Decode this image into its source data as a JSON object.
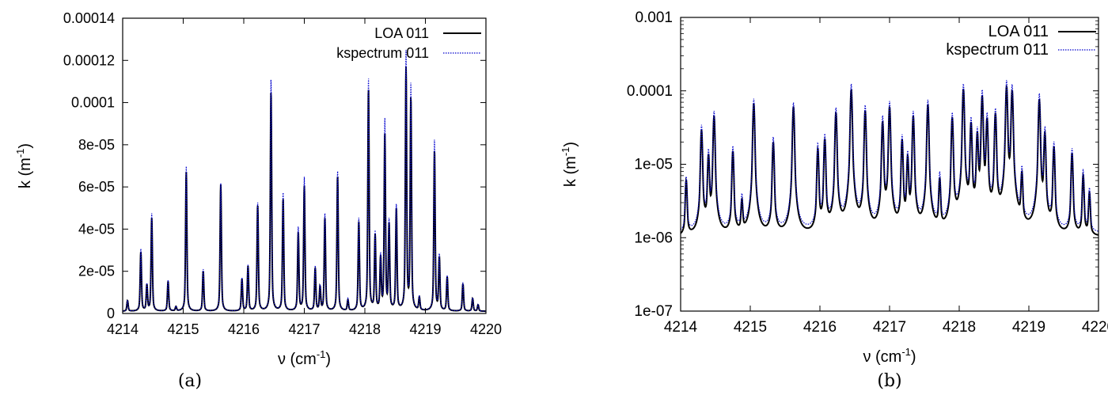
{
  "chart_data": [
    {
      "type": "line",
      "caption": "(a)",
      "xlabel": "ν (cm",
      "xlabel_sup": "-1",
      "xlabel_tail": ")",
      "ylabel": "k (m",
      "ylabel_sup": "-1",
      "ylabel_tail": ")",
      "xlim": [
        4214,
        4220
      ],
      "ylim": [
        0,
        0.00014
      ],
      "yscale": "linear",
      "xticks": [
        "4214",
        "4215",
        "4216",
        "4217",
        "4218",
        "4219",
        "4220"
      ],
      "yticks": [
        "0",
        "2e-05",
        "4e-05",
        "6e-05",
        "8e-05",
        "0.0001",
        "0.00012",
        "0.00014"
      ],
      "ytick_values": [
        0,
        2e-05,
        4e-05,
        6e-05,
        8e-05,
        0.0001,
        0.00012,
        0.00014
      ],
      "legend": "top-right",
      "grid": false,
      "series": [
        {
          "name": "LOA 011",
          "color": "#000000",
          "style": "solid"
        },
        {
          "name": "kspectrum 011",
          "color": "#0000cc",
          "style": "dotted"
        }
      ]
    },
    {
      "type": "line",
      "caption": "(b)",
      "xlabel": "ν (cm",
      "xlabel_sup": "-1",
      "xlabel_tail": ")",
      "ylabel": "k (m",
      "ylabel_sup": "-1",
      "ylabel_tail": ")",
      "xlim": [
        4214,
        4220
      ],
      "ylim": [
        1e-07,
        0.001
      ],
      "yscale": "log",
      "xticks": [
        "4214",
        "4215",
        "4216",
        "4217",
        "4218",
        "4219",
        "4220"
      ],
      "yticks": [
        "1e-07",
        "1e-06",
        "1e-05",
        "0.0001",
        "0.001"
      ],
      "ytick_values": [
        1e-07,
        1e-06,
        1e-05,
        0.0001,
        0.001
      ],
      "legend": "top-right",
      "grid": false,
      "series": [
        {
          "name": "LOA 011",
          "color": "#000000",
          "style": "solid"
        },
        {
          "name": "kspectrum 011",
          "color": "#0000cc",
          "style": "dotted"
        }
      ]
    }
  ],
  "lines": [
    {
      "x": 4214.08,
      "peak": 5e-06,
      "kratio": 1.0
    },
    {
      "x": 4214.3,
      "peak": 2.8e-05,
      "kratio": 1.05
    },
    {
      "x": 4214.4,
      "peak": 1.2e-05,
      "kratio": 1.05
    },
    {
      "x": 4214.48,
      "peak": 4.4e-05,
      "kratio": 1.05
    },
    {
      "x": 4214.75,
      "peak": 1.4e-05,
      "kratio": 1.05
    },
    {
      "x": 4214.88,
      "peak": 2e-06,
      "kratio": 1.1
    },
    {
      "x": 4215.05,
      "peak": 6.6e-05,
      "kratio": 1.04
    },
    {
      "x": 4215.33,
      "peak": 1.9e-05,
      "kratio": 1.05
    },
    {
      "x": 4215.62,
      "peak": 6e-05,
      "kratio": 1.01
    },
    {
      "x": 4215.97,
      "peak": 1.5e-05,
      "kratio": 1.05
    },
    {
      "x": 4216.07,
      "peak": 2.1e-05,
      "kratio": 1.04
    },
    {
      "x": 4216.23,
      "peak": 5e-05,
      "kratio": 1.03
    },
    {
      "x": 4216.45,
      "peak": 0.000104,
      "kratio": 1.06
    },
    {
      "x": 4216.65,
      "peak": 5.3e-05,
      "kratio": 1.06
    },
    {
      "x": 4216.9,
      "peak": 3.7e-05,
      "kratio": 1.07
    },
    {
      "x": 4217.0,
      "peak": 5.9e-05,
      "kratio": 1.07
    },
    {
      "x": 4217.18,
      "peak": 2e-05,
      "kratio": 1.05
    },
    {
      "x": 4217.26,
      "peak": 1.1e-05,
      "kratio": 1.05
    },
    {
      "x": 4217.34,
      "peak": 4.4e-05,
      "kratio": 1.05
    },
    {
      "x": 4217.55,
      "peak": 6.4e-05,
      "kratio": 1.04
    },
    {
      "x": 4217.72,
      "peak": 5e-06,
      "kratio": 1.1
    },
    {
      "x": 4217.9,
      "peak": 4.2e-05,
      "kratio": 1.04
    },
    {
      "x": 4218.06,
      "peak": 0.000105,
      "kratio": 1.05
    },
    {
      "x": 4218.17,
      "peak": 3.5e-05,
      "kratio": 1.05
    },
    {
      "x": 4218.26,
      "peak": 2.4e-05,
      "kratio": 1.05
    },
    {
      "x": 4218.33,
      "peak": 8.3e-05,
      "kratio": 1.09
    },
    {
      "x": 4218.4,
      "peak": 4e-05,
      "kratio": 1.05
    },
    {
      "x": 4218.52,
      "peak": 4.8e-05,
      "kratio": 1.04
    },
    {
      "x": 4218.68,
      "peak": 0.000114,
      "kratio": 1.07
    },
    {
      "x": 4218.76,
      "peak": 0.0001,
      "kratio": 1.07
    },
    {
      "x": 4218.9,
      "peak": 6e-06,
      "kratio": 1.1
    },
    {
      "x": 4219.15,
      "peak": 7.6e-05,
      "kratio": 1.07
    },
    {
      "x": 4219.23,
      "peak": 2.5e-05,
      "kratio": 1.05
    },
    {
      "x": 4219.36,
      "peak": 1.6e-05,
      "kratio": 1.05
    },
    {
      "x": 4219.62,
      "peak": 1.3e-05,
      "kratio": 1.05
    },
    {
      "x": 4219.78,
      "peak": 6e-06,
      "kratio": 1.05
    },
    {
      "x": 4219.87,
      "peak": 3e-06,
      "kratio": 1.05
    }
  ]
}
